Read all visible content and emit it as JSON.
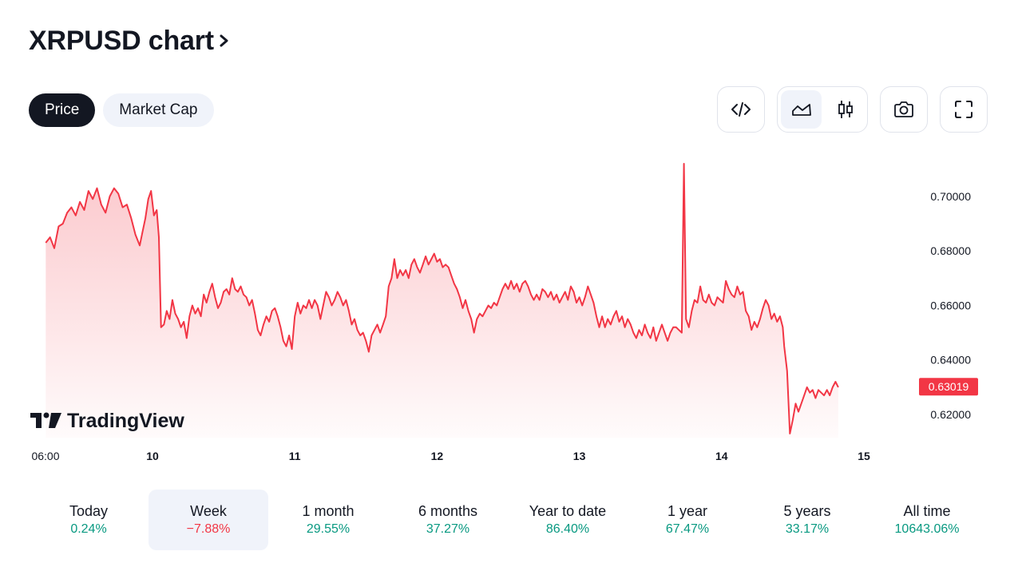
{
  "header": {
    "title": "XRPUSD chart",
    "chevron_icon": "chevron-right-icon"
  },
  "tabs": [
    {
      "label": "Price",
      "active": true
    },
    {
      "label": "Market Cap",
      "active": false
    }
  ],
  "toolbar": {
    "embed_icon": "code-icon",
    "area_icon": "area-chart-icon",
    "candles_icon": "candlestick-icon",
    "snapshot_icon": "camera-icon",
    "fullscreen_icon": "fullscreen-icon",
    "selected_chart_style": "area"
  },
  "watermark": {
    "text": "TradingView",
    "logo_icon": "tradingview-logo-icon"
  },
  "colors": {
    "line": "#f23645",
    "positive": "#089981",
    "negative": "#f23645",
    "dark": "#131722"
  },
  "chart_data": {
    "type": "area",
    "symbol": "XRPUSD",
    "x_tick_labels": [
      "06:00",
      "10",
      "11",
      "12",
      "13",
      "14",
      "15"
    ],
    "y_tick_labels": [
      "0.70000",
      "0.68000",
      "0.66000",
      "0.64000",
      "0.62000"
    ],
    "ylim": [
      0.6115,
      0.7158
    ],
    "grid": false,
    "last_price_label": "0.63019",
    "series": [
      {
        "x_unit": "days since Mar 9 00:00",
        "points": [
          [
            0.25,
            0.683
          ],
          [
            0.28,
            0.685
          ],
          [
            0.31,
            0.681
          ],
          [
            0.34,
            0.689
          ],
          [
            0.37,
            0.69
          ],
          [
            0.4,
            0.694
          ],
          [
            0.43,
            0.696
          ],
          [
            0.46,
            0.693
          ],
          [
            0.49,
            0.698
          ],
          [
            0.52,
            0.695
          ],
          [
            0.55,
            0.702
          ],
          [
            0.58,
            0.699
          ],
          [
            0.61,
            0.703
          ],
          [
            0.64,
            0.697
          ],
          [
            0.67,
            0.694
          ],
          [
            0.7,
            0.7
          ],
          [
            0.73,
            0.703
          ],
          [
            0.76,
            0.701
          ],
          [
            0.79,
            0.696
          ],
          [
            0.82,
            0.697
          ],
          [
            0.85,
            0.692
          ],
          [
            0.88,
            0.686
          ],
          [
            0.91,
            0.682
          ],
          [
            0.93,
            0.687
          ],
          [
            0.95,
            0.692
          ],
          [
            0.97,
            0.699
          ],
          [
            0.99,
            0.702
          ],
          [
            1.01,
            0.693
          ],
          [
            1.03,
            0.695
          ],
          [
            1.045,
            0.685
          ],
          [
            1.06,
            0.652
          ],
          [
            1.08,
            0.653
          ],
          [
            1.1,
            0.658
          ],
          [
            1.12,
            0.655
          ],
          [
            1.14,
            0.662
          ],
          [
            1.16,
            0.657
          ],
          [
            1.18,
            0.655
          ],
          [
            1.2,
            0.652
          ],
          [
            1.22,
            0.654
          ],
          [
            1.24,
            0.648
          ],
          [
            1.26,
            0.656
          ],
          [
            1.28,
            0.66
          ],
          [
            1.3,
            0.657
          ],
          [
            1.32,
            0.659
          ],
          [
            1.34,
            0.656
          ],
          [
            1.36,
            0.664
          ],
          [
            1.38,
            0.661
          ],
          [
            1.4,
            0.665
          ],
          [
            1.42,
            0.668
          ],
          [
            1.44,
            0.663
          ],
          [
            1.46,
            0.659
          ],
          [
            1.48,
            0.661
          ],
          [
            1.5,
            0.665
          ],
          [
            1.52,
            0.666
          ],
          [
            1.54,
            0.664
          ],
          [
            1.56,
            0.67
          ],
          [
            1.58,
            0.666
          ],
          [
            1.6,
            0.665
          ],
          [
            1.62,
            0.667
          ],
          [
            1.64,
            0.664
          ],
          [
            1.66,
            0.663
          ],
          [
            1.68,
            0.66
          ],
          [
            1.7,
            0.662
          ],
          [
            1.72,
            0.657
          ],
          [
            1.74,
            0.651
          ],
          [
            1.76,
            0.649
          ],
          [
            1.78,
            0.653
          ],
          [
            1.8,
            0.656
          ],
          [
            1.82,
            0.654
          ],
          [
            1.84,
            0.658
          ],
          [
            1.86,
            0.659
          ],
          [
            1.88,
            0.656
          ],
          [
            1.9,
            0.652
          ],
          [
            1.92,
            0.647
          ],
          [
            1.94,
            0.645
          ],
          [
            1.96,
            0.649
          ],
          [
            1.98,
            0.644
          ],
          [
            2.0,
            0.656
          ],
          [
            2.02,
            0.661
          ],
          [
            2.04,
            0.657
          ],
          [
            2.06,
            0.66
          ],
          [
            2.08,
            0.659
          ],
          [
            2.1,
            0.662
          ],
          [
            2.12,
            0.659
          ],
          [
            2.14,
            0.662
          ],
          [
            2.16,
            0.66
          ],
          [
            2.18,
            0.655
          ],
          [
            2.2,
            0.66
          ],
          [
            2.22,
            0.665
          ],
          [
            2.24,
            0.663
          ],
          [
            2.26,
            0.66
          ],
          [
            2.28,
            0.662
          ],
          [
            2.3,
            0.665
          ],
          [
            2.32,
            0.663
          ],
          [
            2.34,
            0.66
          ],
          [
            2.36,
            0.662
          ],
          [
            2.38,
            0.658
          ],
          [
            2.4,
            0.653
          ],
          [
            2.42,
            0.655
          ],
          [
            2.44,
            0.651
          ],
          [
            2.46,
            0.649
          ],
          [
            2.48,
            0.65
          ],
          [
            2.5,
            0.647
          ],
          [
            2.52,
            0.643
          ],
          [
            2.54,
            0.649
          ],
          [
            2.56,
            0.651
          ],
          [
            2.58,
            0.653
          ],
          [
            2.6,
            0.65
          ],
          [
            2.62,
            0.653
          ],
          [
            2.64,
            0.656
          ],
          [
            2.66,
            0.667
          ],
          [
            2.68,
            0.67
          ],
          [
            2.7,
            0.677
          ],
          [
            2.72,
            0.67
          ],
          [
            2.74,
            0.673
          ],
          [
            2.76,
            0.671
          ],
          [
            2.78,
            0.673
          ],
          [
            2.8,
            0.67
          ],
          [
            2.82,
            0.675
          ],
          [
            2.84,
            0.677
          ],
          [
            2.86,
            0.674
          ],
          [
            2.88,
            0.672
          ],
          [
            2.9,
            0.675
          ],
          [
            2.92,
            0.678
          ],
          [
            2.94,
            0.675
          ],
          [
            2.96,
            0.677
          ],
          [
            2.98,
            0.679
          ],
          [
            3.0,
            0.676
          ],
          [
            3.02,
            0.677
          ],
          [
            3.04,
            0.674
          ],
          [
            3.06,
            0.675
          ],
          [
            3.08,
            0.674
          ],
          [
            3.1,
            0.671
          ],
          [
            3.12,
            0.668
          ],
          [
            3.14,
            0.666
          ],
          [
            3.16,
            0.663
          ],
          [
            3.18,
            0.659
          ],
          [
            3.2,
            0.662
          ],
          [
            3.22,
            0.658
          ],
          [
            3.24,
            0.655
          ],
          [
            3.26,
            0.65
          ],
          [
            3.28,
            0.655
          ],
          [
            3.3,
            0.657
          ],
          [
            3.32,
            0.656
          ],
          [
            3.34,
            0.658
          ],
          [
            3.36,
            0.66
          ],
          [
            3.38,
            0.659
          ],
          [
            3.4,
            0.661
          ],
          [
            3.42,
            0.66
          ],
          [
            3.44,
            0.663
          ],
          [
            3.46,
            0.666
          ],
          [
            3.48,
            0.668
          ],
          [
            3.5,
            0.666
          ],
          [
            3.52,
            0.669
          ],
          [
            3.54,
            0.666
          ],
          [
            3.56,
            0.668
          ],
          [
            3.58,
            0.665
          ],
          [
            3.6,
            0.668
          ],
          [
            3.62,
            0.669
          ],
          [
            3.64,
            0.667
          ],
          [
            3.66,
            0.664
          ],
          [
            3.68,
            0.662
          ],
          [
            3.7,
            0.664
          ],
          [
            3.72,
            0.662
          ],
          [
            3.74,
            0.666
          ],
          [
            3.76,
            0.665
          ],
          [
            3.78,
            0.663
          ],
          [
            3.8,
            0.665
          ],
          [
            3.82,
            0.662
          ],
          [
            3.84,
            0.664
          ],
          [
            3.86,
            0.661
          ],
          [
            3.88,
            0.663
          ],
          [
            3.9,
            0.665
          ],
          [
            3.92,
            0.662
          ],
          [
            3.94,
            0.667
          ],
          [
            3.96,
            0.665
          ],
          [
            3.98,
            0.661
          ],
          [
            4.0,
            0.663
          ],
          [
            4.02,
            0.66
          ],
          [
            4.04,
            0.663
          ],
          [
            4.06,
            0.667
          ],
          [
            4.08,
            0.664
          ],
          [
            4.1,
            0.661
          ],
          [
            4.12,
            0.656
          ],
          [
            4.14,
            0.652
          ],
          [
            4.16,
            0.656
          ],
          [
            4.18,
            0.652
          ],
          [
            4.2,
            0.655
          ],
          [
            4.22,
            0.653
          ],
          [
            4.24,
            0.656
          ],
          [
            4.26,
            0.658
          ],
          [
            4.28,
            0.654
          ],
          [
            4.3,
            0.656
          ],
          [
            4.32,
            0.652
          ],
          [
            4.34,
            0.655
          ],
          [
            4.36,
            0.653
          ],
          [
            4.38,
            0.65
          ],
          [
            4.4,
            0.648
          ],
          [
            4.42,
            0.651
          ],
          [
            4.44,
            0.649
          ],
          [
            4.46,
            0.653
          ],
          [
            4.48,
            0.65
          ],
          [
            4.5,
            0.648
          ],
          [
            4.52,
            0.652
          ],
          [
            4.54,
            0.647
          ],
          [
            4.56,
            0.65
          ],
          [
            4.58,
            0.653
          ],
          [
            4.6,
            0.65
          ],
          [
            4.62,
            0.647
          ],
          [
            4.64,
            0.65
          ],
          [
            4.66,
            0.652
          ],
          [
            4.68,
            0.652
          ],
          [
            4.7,
            0.651
          ],
          [
            4.72,
            0.65
          ],
          [
            4.735,
            0.712
          ],
          [
            4.75,
            0.655
          ],
          [
            4.77,
            0.652
          ],
          [
            4.79,
            0.658
          ],
          [
            4.81,
            0.662
          ],
          [
            4.83,
            0.661
          ],
          [
            4.85,
            0.667
          ],
          [
            4.87,
            0.662
          ],
          [
            4.89,
            0.661
          ],
          [
            4.91,
            0.664
          ],
          [
            4.93,
            0.661
          ],
          [
            4.95,
            0.66
          ],
          [
            4.97,
            0.663
          ],
          [
            4.99,
            0.662
          ],
          [
            5.01,
            0.661
          ],
          [
            5.03,
            0.669
          ],
          [
            5.05,
            0.666
          ],
          [
            5.07,
            0.664
          ],
          [
            5.09,
            0.663
          ],
          [
            5.11,
            0.667
          ],
          [
            5.13,
            0.664
          ],
          [
            5.15,
            0.665
          ],
          [
            5.17,
            0.658
          ],
          [
            5.19,
            0.656
          ],
          [
            5.21,
            0.651
          ],
          [
            5.23,
            0.654
          ],
          [
            5.25,
            0.652
          ],
          [
            5.27,
            0.655
          ],
          [
            5.29,
            0.659
          ],
          [
            5.31,
            0.662
          ],
          [
            5.33,
            0.66
          ],
          [
            5.35,
            0.655
          ],
          [
            5.37,
            0.657
          ],
          [
            5.39,
            0.654
          ],
          [
            5.41,
            0.656
          ],
          [
            5.43,
            0.652
          ],
          [
            5.44,
            0.645
          ],
          [
            5.46,
            0.636
          ],
          [
            5.48,
            0.613
          ],
          [
            5.5,
            0.618
          ],
          [
            5.52,
            0.624
          ],
          [
            5.54,
            0.621
          ],
          [
            5.56,
            0.624
          ],
          [
            5.58,
            0.627
          ],
          [
            5.6,
            0.63
          ],
          [
            5.62,
            0.628
          ],
          [
            5.64,
            0.629
          ],
          [
            5.66,
            0.626
          ],
          [
            5.68,
            0.629
          ],
          [
            5.7,
            0.628
          ],
          [
            5.72,
            0.627
          ],
          [
            5.74,
            0.629
          ],
          [
            5.76,
            0.627
          ],
          [
            5.78,
            0.63
          ],
          [
            5.8,
            0.632
          ],
          [
            5.82,
            0.63
          ]
        ]
      }
    ]
  },
  "periods": [
    {
      "label": "Today",
      "value": "0.24%",
      "dir": "pos"
    },
    {
      "label": "Week",
      "value": "−7.88%",
      "dir": "neg",
      "selected": true
    },
    {
      "label": "1 month",
      "value": "29.55%",
      "dir": "pos"
    },
    {
      "label": "6 months",
      "value": "37.27%",
      "dir": "pos"
    },
    {
      "label": "Year to date",
      "value": "86.40%",
      "dir": "pos"
    },
    {
      "label": "1 year",
      "value": "67.47%",
      "dir": "pos"
    },
    {
      "label": "5 years",
      "value": "33.17%",
      "dir": "pos"
    },
    {
      "label": "All time",
      "value": "10643.06%",
      "dir": "pos"
    }
  ]
}
